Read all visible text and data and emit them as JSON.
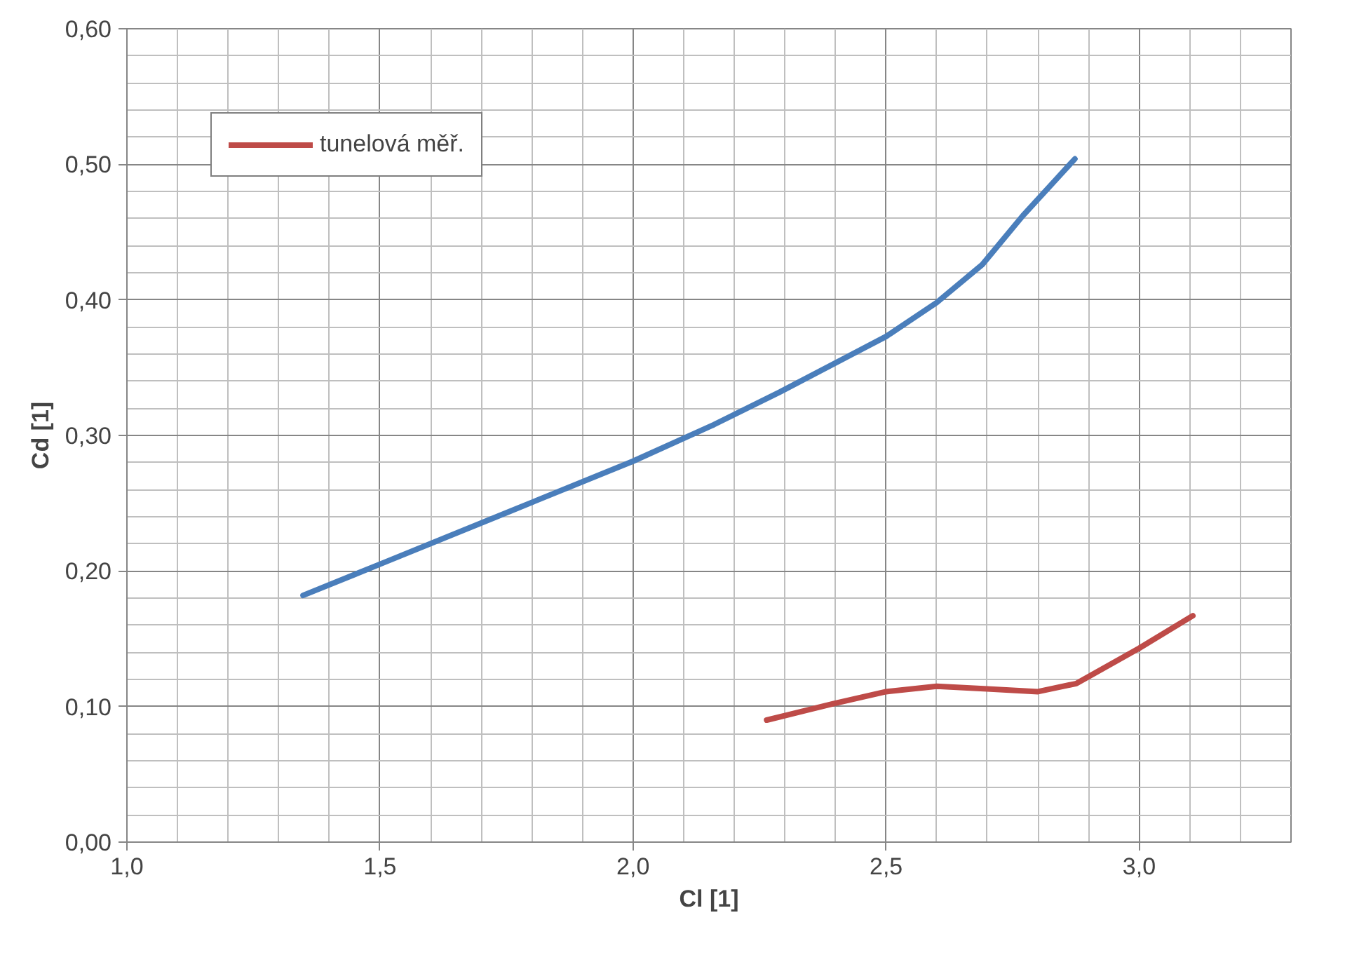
{
  "chart_data": {
    "type": "line",
    "xlabel": "Cl [1]",
    "ylabel": "Cd [1]",
    "xlim": [
      1.0,
      3.3
    ],
    "ylim": [
      0,
      0.6
    ],
    "xticks": [
      {
        "value": 1.0,
        "label": "1,0"
      },
      {
        "value": 1.5,
        "label": "1,5"
      },
      {
        "value": 2.0,
        "label": "2,0"
      },
      {
        "value": 2.5,
        "label": "2,5"
      },
      {
        "value": 3.0,
        "label": "3,0"
      }
    ],
    "yticks": [
      {
        "value": 0,
        "label": "0,00"
      },
      {
        "value": 0.1,
        "label": "0,10"
      },
      {
        "value": 0.2,
        "label": "0,20"
      },
      {
        "value": 0.3,
        "label": "0,30"
      },
      {
        "value": 0.4,
        "label": "0,40"
      },
      {
        "value": 0.5,
        "label": "0,50"
      },
      {
        "value": 0.6,
        "label": "0,60"
      }
    ],
    "grid": true,
    "legend": "top left",
    "marker": "none",
    "line_style": "solid",
    "series": [
      {
        "color": "#4a7ebb",
        "x": [
          1.348,
          1.5,
          1.75,
          2.0,
          2.16,
          2.29,
          2.5,
          2.6,
          2.69,
          2.77,
          2.873
        ],
        "values": [
          0.182,
          0.205,
          0.243,
          0.281,
          0.308,
          0.332,
          0.373,
          0.398,
          0.426,
          0.462,
          0.504
        ]
      },
      {
        "name": "tunelová měř.",
        "color": "#be4b48",
        "x": [
          2.264,
          2.394,
          2.5,
          2.6,
          2.7,
          2.8,
          2.876,
          3.0,
          3.106
        ],
        "values": [
          0.09,
          0.102,
          0.111,
          0.115,
          0.113,
          0.111,
          0.117,
          0.143,
          0.167
        ]
      }
    ]
  }
}
